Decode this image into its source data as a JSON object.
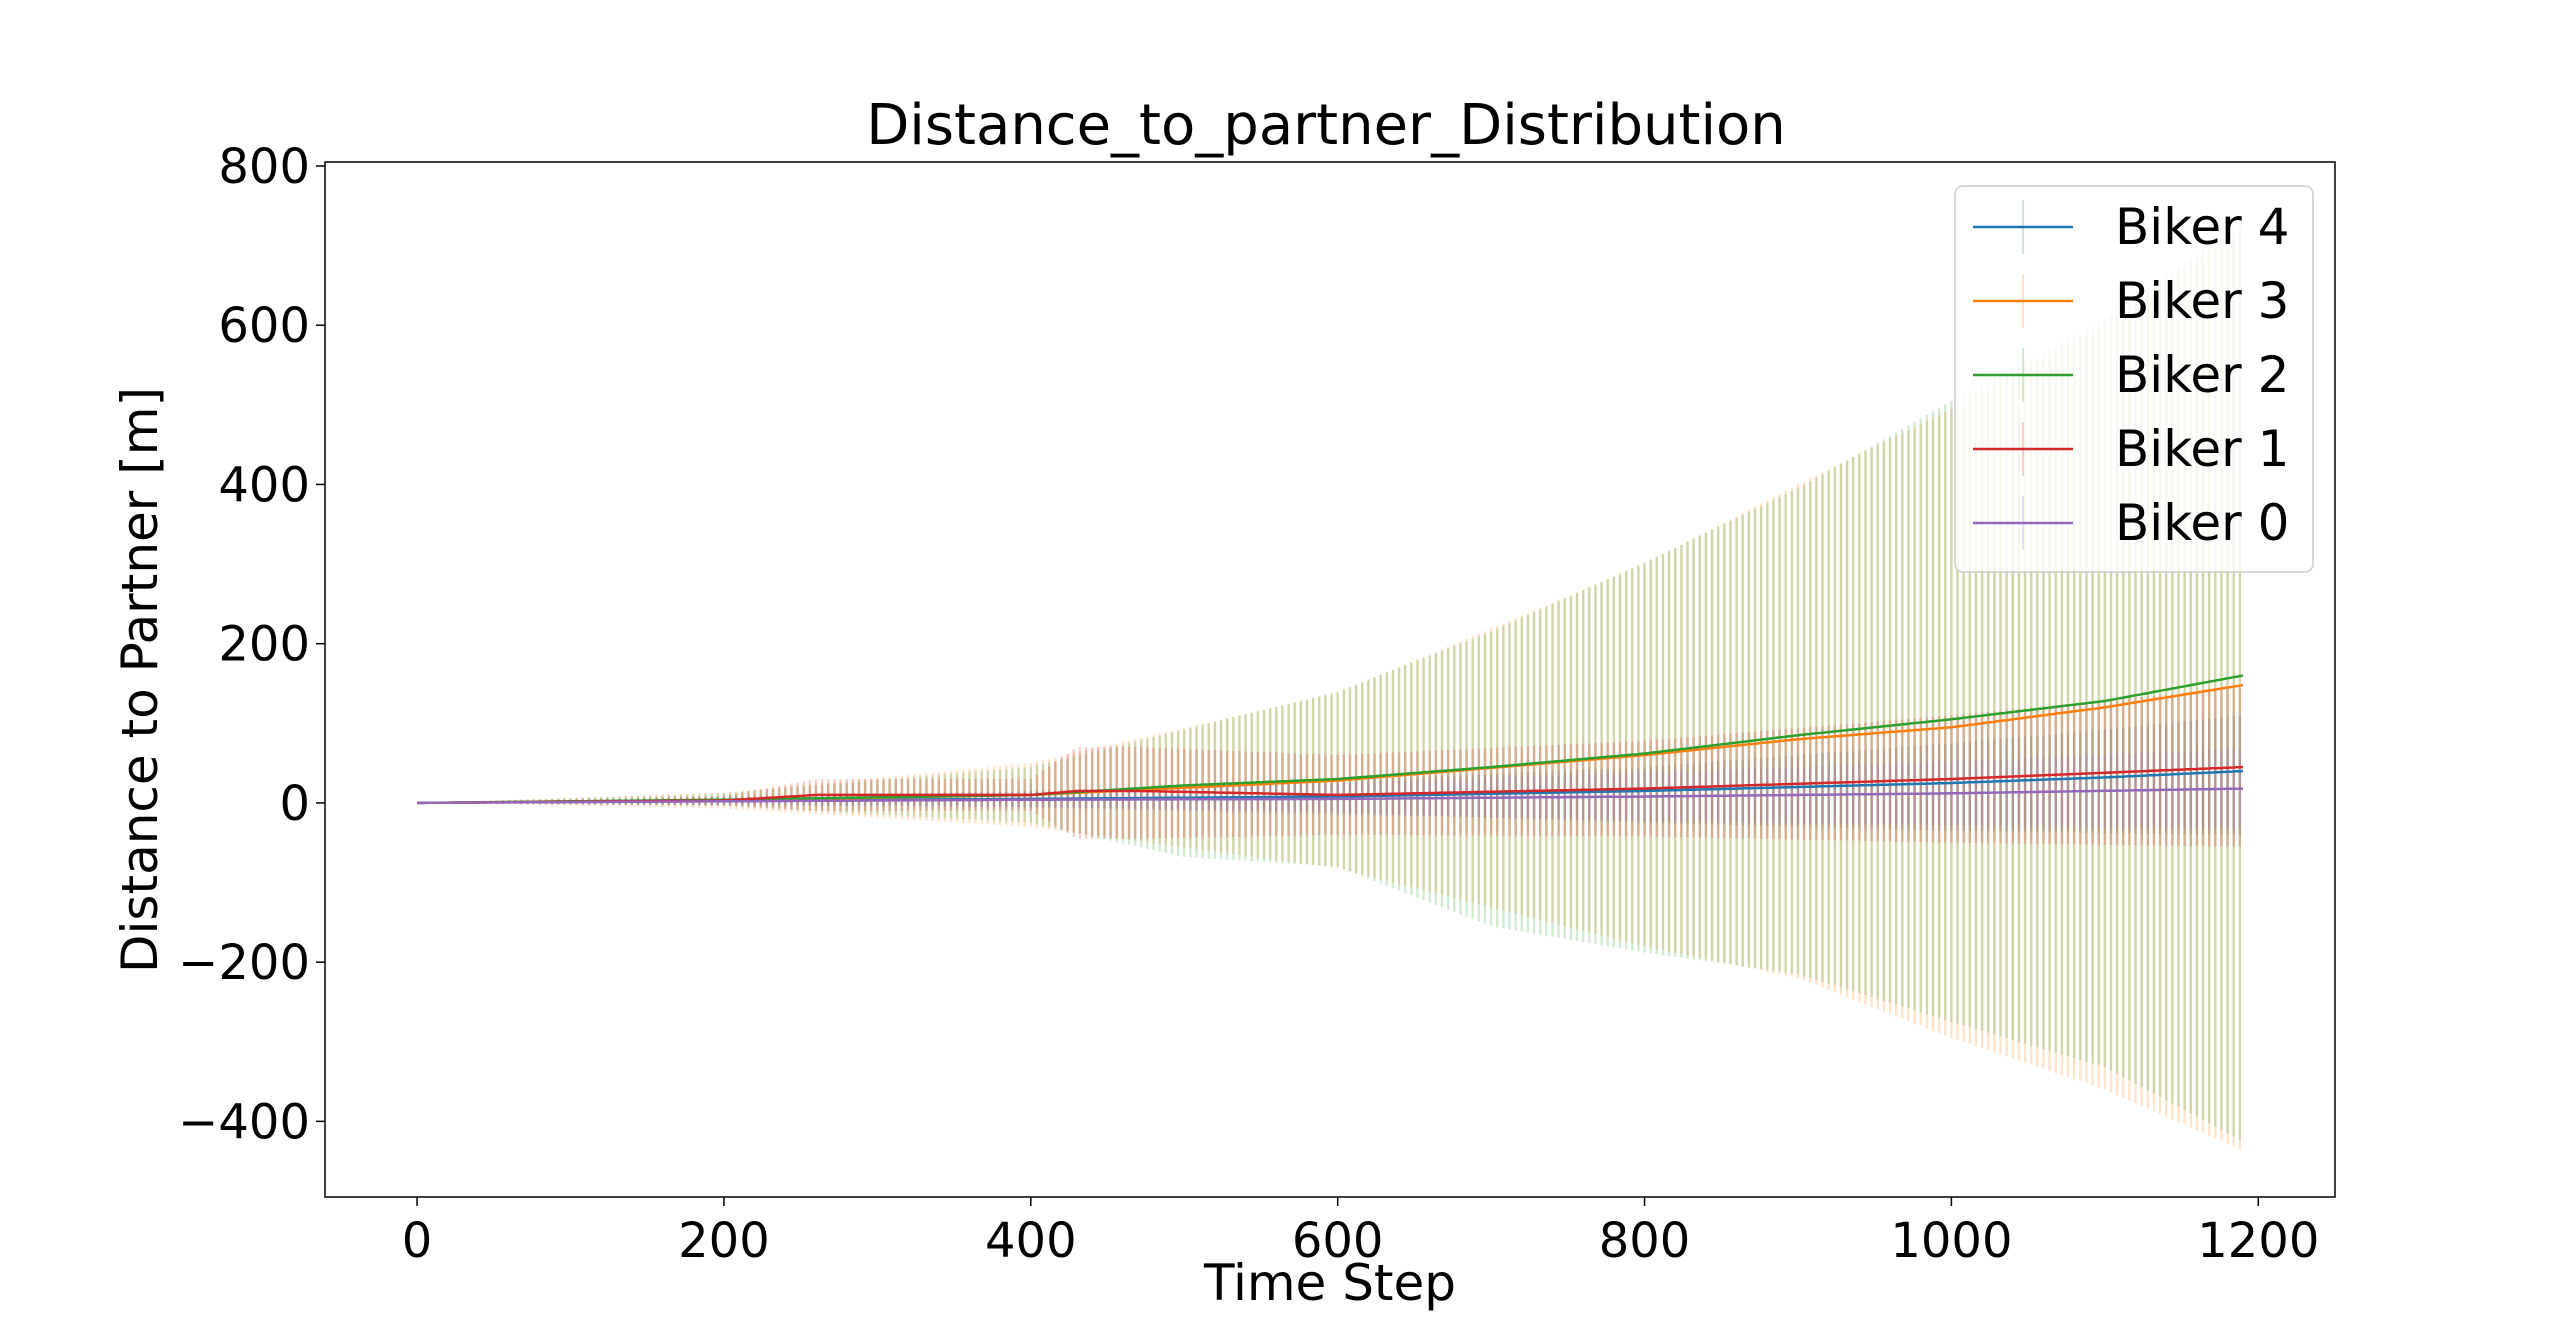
{
  "chart_data": {
    "type": "line",
    "title": "Distance_to_partner_Distribution",
    "xlabel": "Time Step",
    "ylabel": "Distance to Partner [m]",
    "xlim": [
      -60,
      1250
    ],
    "ylim": [
      -495,
      805
    ],
    "xticks": [
      0,
      200,
      400,
      600,
      800,
      1000,
      1200
    ],
    "xtick_labels": [
      "0",
      "200",
      "400",
      "600",
      "800",
      "1000",
      "1200"
    ],
    "yticks": [
      -400,
      -200,
      0,
      200,
      400,
      600,
      800
    ],
    "ytick_labels": [
      "−400",
      "−200",
      "0",
      "200",
      "400",
      "600",
      "800"
    ],
    "grid": false,
    "legend_position": "top-right",
    "error_bars": "vertical error bars around each series mean, drawn densely per time step",
    "series": [
      {
        "name": "Biker 4",
        "color": "#1f77b4",
        "x": [
          0,
          200,
          400,
          600,
          800,
          1000,
          1100,
          1190
        ],
        "y": [
          0,
          3,
          5,
          8,
          15,
          25,
          32,
          40
        ],
        "err_low": [
          0,
          5,
          10,
          20,
          40,
          60,
          70,
          80
        ],
        "err_high": [
          0,
          5,
          10,
          20,
          30,
          50,
          60,
          70
        ]
      },
      {
        "name": "Biker 3",
        "color": "#ff7f0e",
        "x": [
          0,
          200,
          400,
          600,
          800,
          900,
          1000,
          1100,
          1190
        ],
        "y": [
          0,
          3,
          10,
          28,
          60,
          80,
          95,
          120,
          148
        ],
        "err_low": [
          0,
          10,
          40,
          110,
          240,
          300,
          390,
          480,
          585
        ],
        "err_high": [
          0,
          10,
          40,
          110,
          240,
          320,
          400,
          480,
          570
        ]
      },
      {
        "name": "Biker 2",
        "color": "#2ca02c",
        "x": [
          0,
          200,
          400,
          500,
          600,
          700,
          800,
          900,
          1000,
          1100,
          1190
        ],
        "y": [
          0,
          4,
          10,
          22,
          30,
          45,
          62,
          85,
          105,
          128,
          160
        ],
        "err_low": [
          0,
          8,
          35,
          90,
          110,
          200,
          250,
          300,
          380,
          460,
          585
        ],
        "err_high": [
          0,
          8,
          35,
          70,
          110,
          170,
          240,
          310,
          400,
          480,
          570
        ]
      },
      {
        "name": "Biker 1",
        "color": "#d62728",
        "x": [
          0,
          200,
          260,
          400,
          430,
          470,
          600,
          800,
          1000,
          1190
        ],
        "y": [
          0,
          3,
          10,
          10,
          15,
          15,
          10,
          18,
          30,
          45
        ],
        "err_low": [
          0,
          6,
          20,
          20,
          60,
          60,
          50,
          60,
          80,
          100
        ],
        "err_high": [
          0,
          6,
          20,
          20,
          55,
          55,
          50,
          60,
          80,
          100
        ]
      },
      {
        "name": "Biker 0",
        "color": "#9467bd",
        "x": [
          0,
          200,
          400,
          600,
          800,
          1000,
          1190
        ],
        "y": [
          0,
          2,
          4,
          5,
          8,
          12,
          18
        ],
        "err_low": [
          0,
          5,
          10,
          20,
          30,
          40,
          50
        ],
        "err_high": [
          0,
          5,
          10,
          20,
          30,
          40,
          50
        ]
      }
    ]
  }
}
